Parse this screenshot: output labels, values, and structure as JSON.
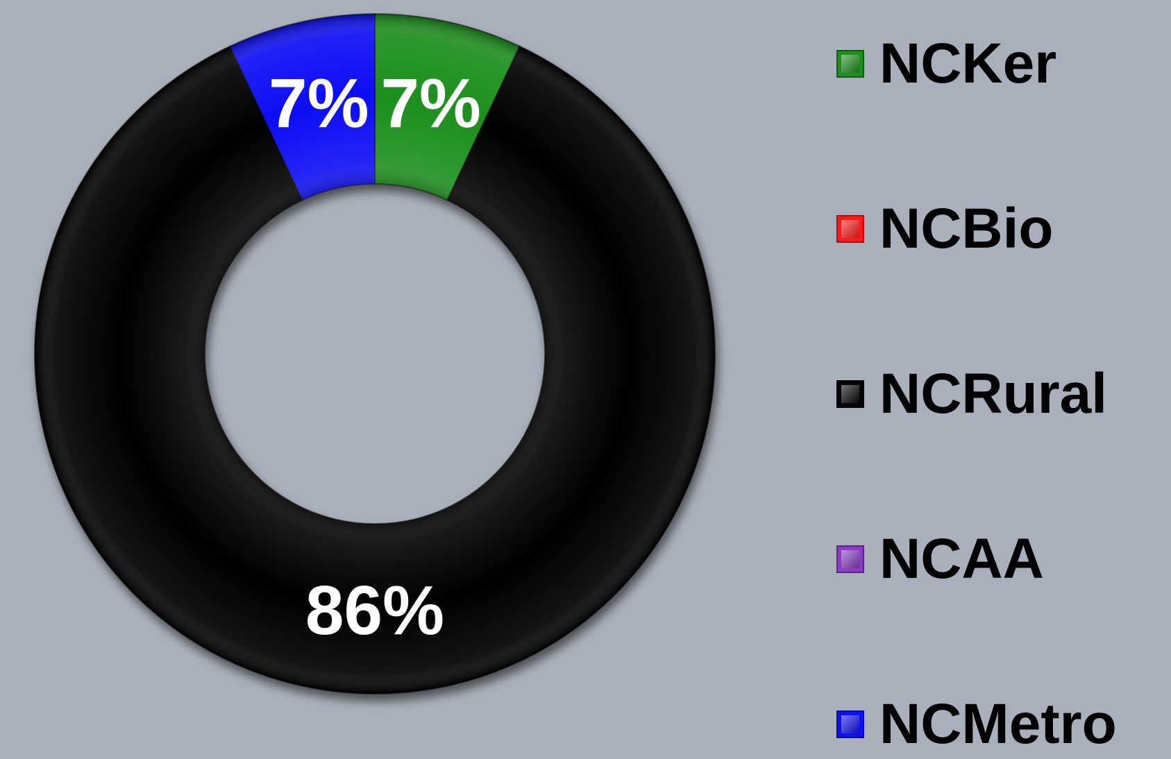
{
  "chart_data": {
    "type": "pie",
    "variant": "donut",
    "categories": [
      "NCKer",
      "NCBio",
      "NCRural",
      "NCAA",
      "NCMetro"
    ],
    "values": [
      7,
      0,
      86,
      0,
      7
    ],
    "value_unit": "%",
    "data_labels": [
      "7%",
      "",
      "86%",
      "",
      "7%"
    ],
    "colors": [
      "#1e8f1e",
      "#ff1a1a",
      "#050505",
      "#8a3cc4",
      "#1010f5"
    ],
    "legend_placement": "right",
    "title": "",
    "background": "#a9b0bb"
  }
}
